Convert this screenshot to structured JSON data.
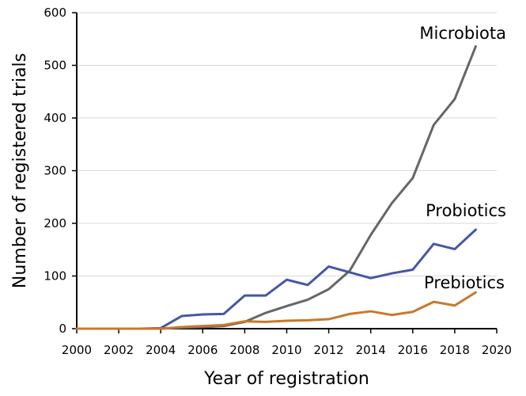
{
  "chart_data": {
    "type": "line",
    "xlabel": "Year of registration",
    "ylabel": "Number of registered trials",
    "xlim": [
      2000,
      2020
    ],
    "ylim": [
      0,
      600
    ],
    "xticks": [
      "2000",
      "2002",
      "2004",
      "2006",
      "2008",
      "2010",
      "2012",
      "2014",
      "2016",
      "2018",
      "2020"
    ],
    "yticks": [
      "0",
      "100",
      "200",
      "300",
      "400",
      "500",
      "600"
    ],
    "grid": "horizontal",
    "legend": "none",
    "x": [
      2000,
      2001,
      2002,
      2003,
      2004,
      2005,
      2006,
      2007,
      2008,
      2009,
      2010,
      2011,
      2012,
      2013,
      2014,
      2015,
      2016,
      2017,
      2018,
      2019
    ],
    "series": [
      {
        "name": "Microbiota",
        "color": "#666666",
        "values": [
          0,
          0,
          0,
          0,
          0,
          2,
          3,
          5,
          13,
          30,
          43,
          55,
          75,
          110,
          178,
          238,
          286,
          387,
          436,
          536
        ]
      },
      {
        "name": "Probiotics",
        "color": "#4557a6",
        "values": [
          0,
          0,
          0,
          0,
          1,
          24,
          27,
          28,
          63,
          63,
          93,
          83,
          118,
          107,
          96,
          105,
          112,
          161,
          151,
          188
        ]
      },
      {
        "name": "Prebiotics",
        "color": "#c8782a",
        "values": [
          0,
          0,
          0,
          0,
          0,
          3,
          5,
          7,
          14,
          13,
          15,
          16,
          18,
          28,
          33,
          26,
          32,
          51,
          44,
          69
        ]
      }
    ]
  }
}
